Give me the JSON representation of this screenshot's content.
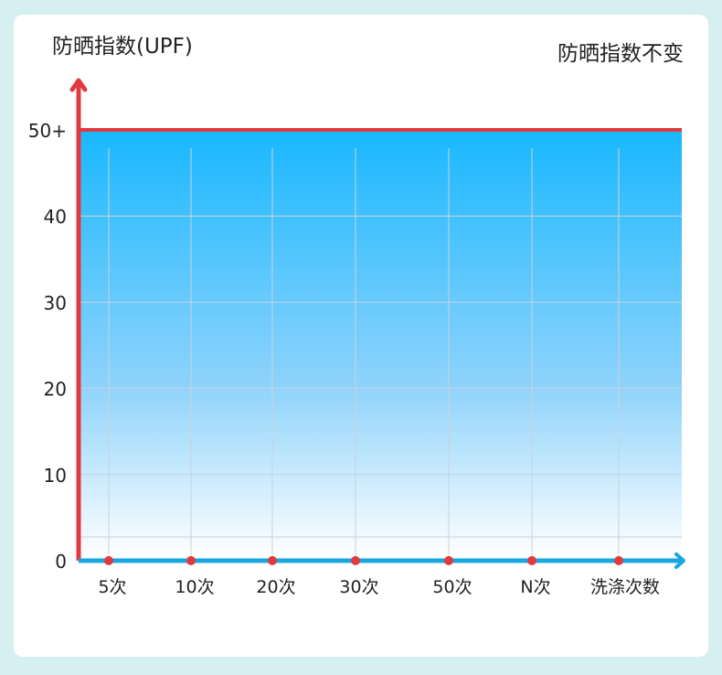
{
  "chart_data": {
    "type": "area",
    "title": "防晒指数不变",
    "ylabel": "防晒指数(UPF)",
    "xlabel": "洗涤次数",
    "categories": [
      "5次",
      "10次",
      "20次",
      "30次",
      "50次",
      "N次"
    ],
    "y_ticks": [
      "0",
      "10",
      "20",
      "30",
      "40",
      "50+"
    ],
    "y_tick_values": [
      0,
      10,
      20,
      30,
      40,
      50
    ],
    "ylim": [
      0,
      50
    ],
    "series": [
      {
        "values": [
          50,
          50,
          50,
          50,
          50,
          50
        ]
      }
    ],
    "grid": true,
    "colors": {
      "y_axis": "#e03a3e",
      "x_axis": "#1aa7e0",
      "markers": "#e03a3e",
      "fill_top": "#1ab8ff",
      "fill_bottom": "#ffffff",
      "grid": "#c9d3db"
    }
  }
}
